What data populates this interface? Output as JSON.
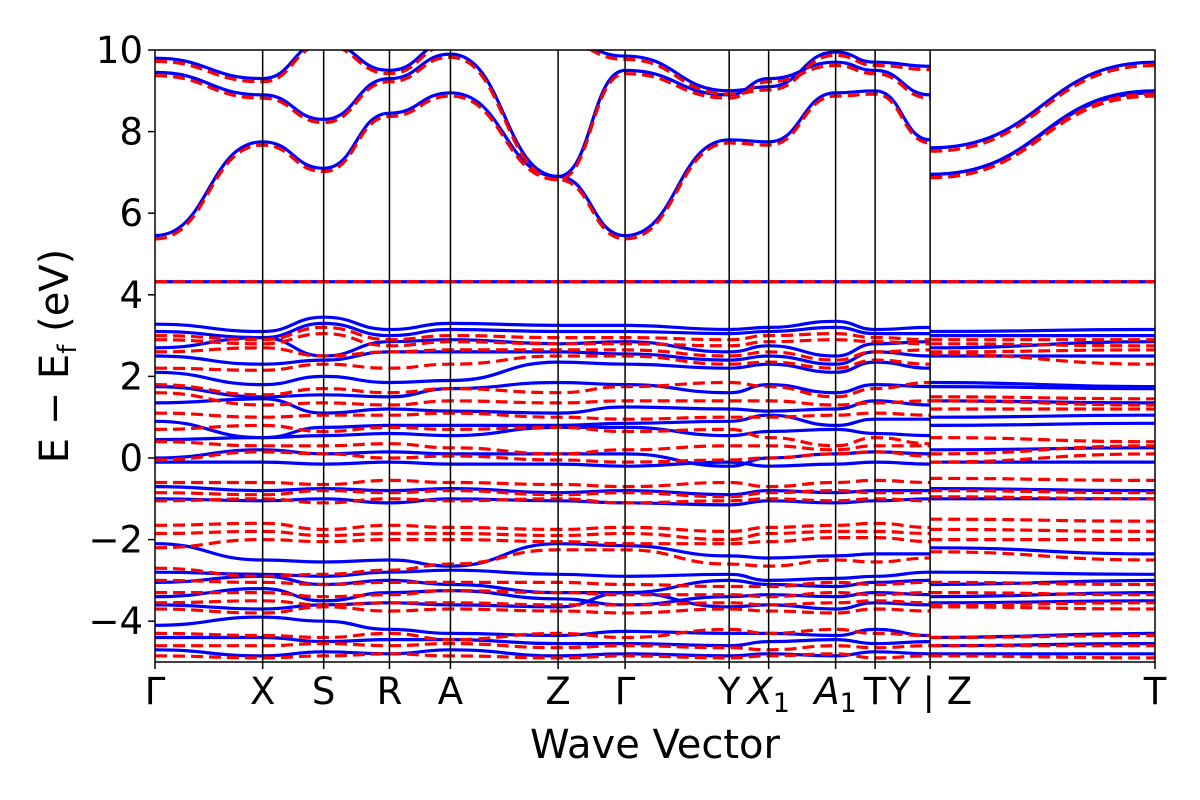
{
  "chart_data": {
    "type": "line",
    "title": "",
    "xlabel": "Wave Vector",
    "ylabel": "E − E",
    "ylabel_sub": "f",
    "ylabel_unit": " (eV)",
    "ylim": [
      -5,
      10
    ],
    "yticks": [
      {
        "value": -4,
        "label": "−4"
      },
      {
        "value": -2,
        "label": "−2"
      },
      {
        "value": 0,
        "label": "0"
      },
      {
        "value": 2,
        "label": "2"
      },
      {
        "value": 4,
        "label": "4"
      },
      {
        "value": 6,
        "label": "6"
      },
      {
        "value": 8,
        "label": "8"
      },
      {
        "value": 10,
        "label": "10"
      }
    ],
    "xlim": [
      0,
      8.36
    ],
    "kpoints": [
      {
        "pos": 0.0,
        "label": "Γ",
        "sub": ""
      },
      {
        "pos": 0.9,
        "label": "X",
        "sub": ""
      },
      {
        "pos": 1.41,
        "label": "S",
        "sub": ""
      },
      {
        "pos": 1.96,
        "label": "R",
        "sub": ""
      },
      {
        "pos": 2.47,
        "label": "A",
        "sub": ""
      },
      {
        "pos": 3.37,
        "label": "Z",
        "sub": ""
      },
      {
        "pos": 3.93,
        "label": "Γ",
        "sub": ""
      },
      {
        "pos": 4.8,
        "label": "Y",
        "sub": ""
      },
      {
        "pos": 5.13,
        "label": "X",
        "sub": "1"
      },
      {
        "pos": 5.69,
        "label": "A",
        "sub": "1"
      },
      {
        "pos": 6.02,
        "label": "T",
        "sub": ""
      },
      {
        "pos": 6.48,
        "label": "Y | Z",
        "sub": ""
      },
      {
        "pos": 8.36,
        "label": "T",
        "sub": ""
      }
    ],
    "grid": false,
    "series_colors": {
      "blue_solid": "#0000ff",
      "red_dashed": "#ff0000"
    },
    "flat_band_energy": 4.32,
    "conduction": {
      "x": [
        0.0,
        0.9,
        1.41,
        1.96,
        2.47,
        3.37,
        3.93,
        4.8,
        5.13,
        5.69,
        6.02,
        6.48,
        6.481,
        8.36
      ],
      "bands": [
        [
          5.45,
          7.75,
          7.1,
          8.45,
          8.95,
          6.9,
          5.45,
          7.8,
          7.75,
          8.95,
          9.0,
          7.8,
          6.95,
          8.95
        ],
        [
          9.45,
          8.9,
          8.3,
          9.3,
          9.9,
          6.9,
          9.5,
          8.9,
          9.3,
          9.7,
          9.5,
          8.9,
          6.95,
          9.0
        ],
        [
          9.8,
          9.3,
          10.2,
          9.5,
          10.2,
          10.3,
          9.85,
          9.0,
          9.1,
          9.95,
          9.7,
          9.6,
          7.6,
          9.7
        ]
      ]
    },
    "valence_blue": {
      "x": [
        0.0,
        0.9,
        1.41,
        1.96,
        2.47,
        3.37,
        3.93,
        4.8,
        5.13,
        5.69,
        6.02,
        6.48,
        6.481,
        8.36
      ],
      "bands": [
        [
          3.28,
          3.1,
          3.45,
          3.15,
          3.3,
          3.25,
          3.25,
          3.15,
          3.2,
          3.35,
          3.15,
          3.2,
          3.1,
          3.15
        ],
        [
          3.1,
          2.95,
          3.3,
          3.0,
          3.15,
          3.1,
          3.1,
          3.05,
          3.1,
          3.2,
          3.05,
          3.05,
          3.0,
          3.0
        ],
        [
          2.7,
          2.95,
          2.5,
          2.85,
          2.9,
          2.8,
          2.85,
          2.6,
          2.75,
          2.5,
          2.8,
          2.85,
          2.7,
          2.85
        ],
        [
          2.5,
          2.3,
          2.4,
          2.6,
          2.6,
          2.6,
          2.55,
          2.4,
          2.5,
          2.3,
          2.6,
          2.5,
          2.5,
          2.5
        ],
        [
          2.1,
          1.8,
          2.0,
          1.85,
          1.9,
          2.35,
          2.3,
          2.2,
          2.3,
          2.1,
          2.35,
          2.2,
          1.85,
          1.75
        ],
        [
          1.75,
          1.5,
          1.55,
          1.5,
          1.7,
          1.85,
          1.8,
          1.6,
          1.8,
          1.6,
          1.8,
          1.75,
          1.75,
          1.7
        ],
        [
          1.35,
          1.45,
          1.1,
          1.2,
          1.15,
          1.1,
          1.25,
          1.2,
          1.15,
          1.2,
          1.4,
          1.3,
          1.4,
          1.35
        ],
        [
          0.9,
          0.5,
          0.75,
          0.8,
          0.8,
          0.8,
          0.85,
          0.9,
          1.05,
          0.8,
          0.95,
          0.95,
          1.0,
          1.05
        ],
        [
          0.45,
          0.5,
          0.55,
          0.6,
          0.55,
          0.75,
          0.75,
          0.55,
          0.65,
          0.7,
          0.6,
          0.55,
          0.8,
          0.85
        ],
        [
          0.0,
          0.2,
          0.1,
          0.15,
          0.1,
          0.1,
          0.1,
          -0.2,
          0.0,
          0.1,
          0.15,
          0.1,
          0.2,
          0.25
        ],
        [
          -0.1,
          -0.1,
          -0.15,
          -0.1,
          -0.15,
          -0.15,
          -0.2,
          -0.1,
          -0.2,
          -0.15,
          -0.1,
          -0.15,
          -0.1,
          -0.1
        ],
        [
          -0.7,
          -0.8,
          -0.75,
          -0.8,
          -0.75,
          -0.85,
          -0.8,
          -0.9,
          -0.8,
          -0.85,
          -0.8,
          -0.8,
          -0.75,
          -0.8
        ],
        [
          -1.0,
          -1.05,
          -1.0,
          -1.1,
          -1.0,
          -1.05,
          -1.1,
          -1.15,
          -1.05,
          -1.1,
          -1.05,
          -1.0,
          -1.0,
          -1.0
        ],
        [
          -2.1,
          -2.5,
          -2.55,
          -2.5,
          -2.65,
          -2.1,
          -2.15,
          -2.4,
          -2.45,
          -2.4,
          -2.35,
          -2.35,
          -2.2,
          -2.35
        ],
        [
          -2.8,
          -2.85,
          -2.9,
          -2.8,
          -2.75,
          -2.85,
          -2.9,
          -2.85,
          -3.0,
          -2.95,
          -2.9,
          -2.8,
          -2.8,
          -2.85
        ],
        [
          -3.05,
          -2.9,
          -3.1,
          -3.0,
          -3.1,
          -3.3,
          -3.3,
          -3.0,
          -3.1,
          -3.15,
          -3.05,
          -3.0,
          -3.1,
          -3.0
        ],
        [
          -3.4,
          -3.2,
          -3.5,
          -3.3,
          -3.25,
          -3.45,
          -3.6,
          -3.4,
          -3.35,
          -3.4,
          -3.3,
          -3.35,
          -3.4,
          -3.3
        ],
        [
          -3.6,
          -3.7,
          -3.6,
          -3.55,
          -3.6,
          -3.65,
          -3.3,
          -3.65,
          -3.6,
          -3.7,
          -3.55,
          -3.6,
          -3.55,
          -3.5
        ],
        [
          -4.1,
          -3.9,
          -4.0,
          -4.2,
          -4.3,
          -4.35,
          -4.25,
          -4.3,
          -4.3,
          -4.35,
          -4.2,
          -4.35,
          -4.4,
          -4.3
        ],
        [
          -4.4,
          -4.4,
          -4.5,
          -4.45,
          -4.45,
          -4.55,
          -4.55,
          -4.6,
          -4.5,
          -4.45,
          -4.55,
          -4.5,
          -4.6,
          -4.55
        ],
        [
          -4.7,
          -4.85,
          -4.75,
          -4.8,
          -4.7,
          -4.85,
          -4.8,
          -4.85,
          -4.8,
          -4.85,
          -4.75,
          -4.8,
          -4.8,
          -4.8
        ]
      ]
    },
    "valence_red": {
      "x": [
        0.0,
        0.9,
        1.41,
        1.96,
        2.47,
        3.37,
        3.93,
        4.8,
        5.13,
        5.69,
        6.02,
        6.48,
        6.481,
        8.36
      ],
      "bands": [
        [
          3.0,
          2.9,
          3.2,
          2.9,
          3.0,
          2.95,
          2.95,
          2.9,
          3.0,
          3.05,
          2.95,
          2.9,
          2.9,
          2.9
        ],
        [
          2.9,
          2.8,
          3.05,
          2.75,
          2.85,
          2.8,
          2.8,
          2.75,
          2.85,
          2.9,
          2.85,
          2.8,
          2.8,
          2.75
        ],
        [
          2.6,
          2.7,
          2.5,
          2.6,
          2.65,
          2.65,
          2.65,
          2.5,
          2.6,
          2.4,
          2.6,
          2.65,
          2.6,
          2.65
        ],
        [
          2.2,
          2.15,
          2.3,
          2.2,
          2.3,
          2.5,
          2.5,
          2.3,
          2.35,
          2.2,
          2.4,
          2.3,
          2.55,
          2.3
        ],
        [
          1.8,
          1.55,
          1.7,
          1.6,
          1.7,
          1.6,
          1.75,
          1.85,
          1.75,
          1.5,
          1.7,
          1.85,
          1.5,
          1.45
        ],
        [
          1.6,
          1.3,
          1.35,
          1.3,
          1.4,
          1.35,
          1.4,
          1.4,
          1.4,
          1.3,
          1.35,
          1.4,
          1.4,
          1.3
        ],
        [
          1.1,
          1.0,
          1.05,
          1.05,
          1.1,
          1.0,
          0.95,
          1.0,
          1.0,
          1.05,
          1.1,
          1.05,
          1.2,
          1.2
        ],
        [
          0.7,
          0.8,
          0.65,
          0.75,
          0.7,
          0.75,
          0.65,
          0.7,
          0.5,
          0.3,
          0.5,
          0.35,
          0.5,
          0.4
        ],
        [
          0.4,
          0.3,
          0.3,
          0.35,
          0.25,
          0.1,
          0.2,
          0.3,
          0.3,
          0.2,
          0.3,
          0.3,
          0.1,
          0.3
        ],
        [
          -0.05,
          0.15,
          0.1,
          0.0,
          0.05,
          -0.05,
          -0.1,
          -0.05,
          0.0,
          0.1,
          0.15,
          0.05,
          -0.1,
          0.1
        ],
        [
          -0.6,
          -0.6,
          -0.65,
          -0.55,
          -0.6,
          -0.65,
          -0.7,
          -0.6,
          -0.7,
          -0.6,
          -0.55,
          -0.6,
          -0.5,
          -0.55
        ],
        [
          -0.85,
          -0.9,
          -0.8,
          -0.85,
          -0.8,
          -0.9,
          -0.85,
          -0.95,
          -0.85,
          -0.8,
          -0.85,
          -0.85,
          -0.8,
          -0.85
        ],
        [
          -1.05,
          -1.0,
          -1.1,
          -1.0,
          -1.05,
          -1.0,
          -1.1,
          -1.05,
          -1.0,
          -1.05,
          -1.0,
          -1.05,
          -0.95,
          -1.0
        ],
        [
          -1.65,
          -1.6,
          -1.75,
          -1.65,
          -1.7,
          -1.75,
          -1.7,
          -1.8,
          -1.7,
          -1.65,
          -1.6,
          -1.7,
          -1.5,
          -1.55
        ],
        [
          -1.85,
          -1.8,
          -1.9,
          -1.85,
          -1.85,
          -1.9,
          -1.85,
          -2.0,
          -1.85,
          -1.8,
          -1.8,
          -1.85,
          -1.75,
          -1.8
        ],
        [
          -2.2,
          -2.0,
          -2.05,
          -2.0,
          -2.0,
          -2.05,
          -2.1,
          -2.1,
          -2.05,
          -1.95,
          -1.95,
          -2.05,
          -2.0,
          -2.0
        ],
        [
          -2.7,
          -2.9,
          -2.85,
          -2.75,
          -2.6,
          -2.25,
          -2.25,
          -2.6,
          -2.65,
          -2.5,
          -2.55,
          -2.45,
          -2.3,
          -2.5
        ],
        [
          -3.0,
          -3.05,
          -3.1,
          -3.05,
          -3.05,
          -3.05,
          -3.1,
          -3.15,
          -3.15,
          -3.05,
          -3.1,
          -3.05,
          -3.05,
          -3.1
        ],
        [
          -3.3,
          -3.3,
          -3.4,
          -3.35,
          -3.25,
          -3.3,
          -3.35,
          -3.35,
          -3.4,
          -3.3,
          -3.35,
          -3.3,
          -3.3,
          -3.35
        ],
        [
          -3.55,
          -3.5,
          -3.6,
          -3.55,
          -3.55,
          -3.6,
          -3.6,
          -3.55,
          -3.6,
          -3.55,
          -3.5,
          -3.55,
          -3.6,
          -3.55
        ],
        [
          -3.7,
          -3.8,
          -3.65,
          -3.75,
          -3.7,
          -3.75,
          -3.8,
          -3.7,
          -3.75,
          -3.8,
          -3.7,
          -3.75,
          -3.65,
          -3.7
        ],
        [
          -4.3,
          -4.35,
          -4.4,
          -4.3,
          -4.45,
          -4.3,
          -4.4,
          -4.2,
          -4.3,
          -4.2,
          -4.3,
          -4.35,
          -4.4,
          -4.35
        ],
        [
          -4.6,
          -4.6,
          -4.55,
          -4.6,
          -4.55,
          -4.65,
          -4.6,
          -4.65,
          -4.7,
          -4.6,
          -4.65,
          -4.6,
          -4.6,
          -4.6
        ],
        [
          -4.85,
          -4.9,
          -4.85,
          -4.8,
          -4.85,
          -4.9,
          -4.85,
          -4.9,
          -4.85,
          -4.8,
          -4.9,
          -4.85,
          -4.85,
          -4.9
        ]
      ]
    }
  }
}
